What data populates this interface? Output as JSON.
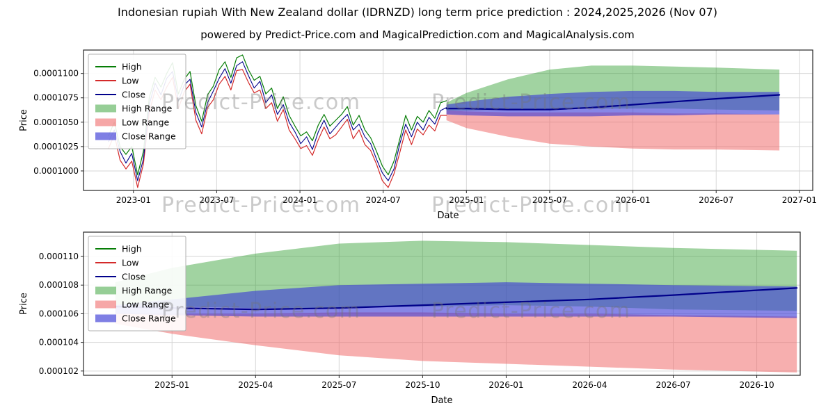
{
  "page": {
    "title": "Indonesian rupiah With New Zealand dollar (IDRNZD) long term price prediction : 2024,2025,2026 (Nov 07)",
    "subtitle": "powered by Predict-Price.com and MagicalPrediction.com and MagicalAnalysis.com",
    "watermark_text": "Predict-Price.com"
  },
  "legend": {
    "high": "High",
    "low": "Low",
    "close": "Close",
    "high_range": "High Range",
    "low_range": "Low Range",
    "close_range": "Close Range"
  },
  "colors": {
    "high_line": "#067d06",
    "low_line": "#d42a2a",
    "close_line": "#00008b",
    "high_band": "#2e9e2e",
    "low_band": "#ef5f5f",
    "close_band": "#3b3bd6",
    "grid": "#d6d6d6",
    "spine": "#262626"
  },
  "chart_data": [
    {
      "type": "line",
      "name": "history-and-forecast",
      "value_unit": 1e-07,
      "xlabel": "Date",
      "ylabel": "Price",
      "xlim": [
        2022.7,
        2027.08
      ],
      "ylim": [
        980,
        1124
      ],
      "x_ticks": [
        {
          "t": 2023.0,
          "label": "2023-01"
        },
        {
          "t": 2023.5,
          "label": "2023-07"
        },
        {
          "t": 2024.0,
          "label": "2024-01"
        },
        {
          "t": 2024.5,
          "label": "2024-07"
        },
        {
          "t": 2025.0,
          "label": "2025-01"
        },
        {
          "t": 2025.5,
          "label": "2025-07"
        },
        {
          "t": 2026.0,
          "label": "2026-01"
        },
        {
          "t": 2026.5,
          "label": "2026-07"
        },
        {
          "t": 2027.0,
          "label": "2027-01"
        }
      ],
      "y_ticks": [
        {
          "v": 1100,
          "label": "0.0001100"
        },
        {
          "v": 1075,
          "label": "0.0001075"
        },
        {
          "v": 1050,
          "label": "0.0001050"
        },
        {
          "v": 1025,
          "label": "0.0001025"
        },
        {
          "v": 1000,
          "label": "0.0001000"
        }
      ],
      "history": {
        "x": [
          2022.85,
          2022.885,
          2022.92,
          2022.955,
          2022.99,
          2023.025,
          2023.06,
          2023.095,
          2023.13,
          2023.165,
          2023.2,
          2023.235,
          2023.27,
          2023.305,
          2023.34,
          2023.375,
          2023.41,
          2023.445,
          2023.48,
          2023.515,
          2023.55,
          2023.585,
          2023.62,
          2023.655,
          2023.69,
          2023.725,
          2023.76,
          2023.795,
          2023.83,
          2023.865,
          2023.9,
          2023.935,
          2023.97,
          2024.005,
          2024.04,
          2024.075,
          2024.11,
          2024.145,
          2024.18,
          2024.215,
          2024.25,
          2024.285,
          2024.32,
          2024.355,
          2024.39,
          2024.425,
          2024.46,
          2024.495,
          2024.53,
          2024.565,
          2024.6,
          2024.635,
          2024.67,
          2024.705,
          2024.74,
          2024.775,
          2024.81,
          2024.845,
          2024.88
        ],
        "high": [
          1036,
          1050,
          1025,
          1017,
          1025,
          996,
          1020,
          1075,
          1096,
          1086,
          1100,
          1111,
          1079,
          1094,
          1102,
          1067,
          1051,
          1078,
          1087,
          1104,
          1112,
          1096,
          1116,
          1119,
          1104,
          1093,
          1097,
          1079,
          1085,
          1064,
          1076,
          1057,
          1046,
          1036,
          1040,
          1031,
          1047,
          1058,
          1046,
          1052,
          1058,
          1066,
          1047,
          1057,
          1042,
          1034,
          1020,
          1005,
          996,
          1010,
          1033,
          1057,
          1042,
          1056,
          1050,
          1062,
          1054,
          1070,
          1072
        ],
        "low": [
          1023,
          1037,
          1011,
          1002,
          1010,
          983,
          1007,
          1060,
          1083,
          1073,
          1086,
          1096,
          1064,
          1081,
          1089,
          1052,
          1038,
          1065,
          1073,
          1089,
          1097,
          1083,
          1103,
          1104,
          1091,
          1080,
          1083,
          1064,
          1070,
          1051,
          1063,
          1042,
          1033,
          1023,
          1026,
          1016,
          1032,
          1045,
          1033,
          1037,
          1045,
          1053,
          1033,
          1042,
          1027,
          1021,
          1007,
          990,
          983,
          997,
          1019,
          1042,
          1027,
          1043,
          1037,
          1047,
          1041,
          1057,
          1057
        ],
        "close": [
          1030,
          1042,
          1020,
          1008,
          1018,
          990,
          1012,
          1068,
          1090,
          1078,
          1095,
          1102,
          1072,
          1088,
          1094,
          1060,
          1045,
          1070,
          1082,
          1095,
          1105,
          1090,
          1108,
          1112,
          1098,
          1085,
          1092,
          1070,
          1078,
          1058,
          1068,
          1050,
          1040,
          1028,
          1035,
          1022,
          1040,
          1052,
          1038,
          1045,
          1052,
          1058,
          1042,
          1048,
          1035,
          1028,
          1012,
          998,
          990,
          1002,
          1028,
          1048,
          1035,
          1050,
          1042,
          1055,
          1048,
          1062,
          1065
        ]
      },
      "forecast": {
        "x": [
          2024.88,
          2025.0,
          2025.25,
          2025.5,
          2025.75,
          2026.0,
          2026.25,
          2026.5,
          2026.88
        ],
        "high_range": {
          "upper": [
            1070,
            1080,
            1094,
            1104,
            1108,
            1108,
            1107,
            1106,
            1104
          ],
          "lower": [
            1062,
            1062,
            1063,
            1063,
            1064,
            1064,
            1064,
            1063,
            1062
          ]
        },
        "low_range": {
          "upper": [
            1062,
            1061,
            1060,
            1060,
            1060,
            1060,
            1059,
            1059,
            1058
          ],
          "lower": [
            1052,
            1044,
            1035,
            1028,
            1025,
            1023,
            1022,
            1022,
            1021
          ]
        },
        "close_range": {
          "upper": [
            1068,
            1071,
            1076,
            1079,
            1081,
            1082,
            1082,
            1081,
            1081
          ],
          "lower": [
            1058,
            1057,
            1056,
            1056,
            1056,
            1057,
            1057,
            1058,
            1058
          ]
        },
        "close": [
          1064,
          1064,
          1063,
          1063,
          1065,
          1068,
          1071,
          1074,
          1078
        ]
      }
    },
    {
      "type": "line",
      "name": "forecast-detail",
      "value_unit": 1e-07,
      "xlabel": "Date",
      "ylabel": "Price",
      "xlim": [
        2024.735,
        2026.88
      ],
      "ylim": [
        1017,
        1117
      ],
      "x_ticks": [
        {
          "t": 2025.0,
          "label": "2025-01"
        },
        {
          "t": 2025.25,
          "label": "2025-04"
        },
        {
          "t": 2025.5,
          "label": "2025-07"
        },
        {
          "t": 2025.75,
          "label": "2025-10"
        },
        {
          "t": 2026.0,
          "label": "2026-01"
        },
        {
          "t": 2026.25,
          "label": "2026-04"
        },
        {
          "t": 2026.5,
          "label": "2026-07"
        },
        {
          "t": 2026.75,
          "label": "2026-10"
        }
      ],
      "y_ticks": [
        {
          "v": 1100,
          "label": "0.000110"
        },
        {
          "v": 1080,
          "label": "0.000108"
        },
        {
          "v": 1060,
          "label": "0.000106"
        },
        {
          "v": 1040,
          "label": "0.000104"
        },
        {
          "v": 1020,
          "label": "0.000102"
        }
      ],
      "forecast": {
        "x": [
          2024.83,
          2025.0,
          2025.25,
          2025.5,
          2025.75,
          2026.0,
          2026.25,
          2026.5,
          2026.87
        ],
        "high_range": {
          "upper": [
            1082,
            1092,
            1102,
            1109,
            1111,
            1110,
            1108,
            1106,
            1104
          ],
          "lower": [
            1066,
            1065,
            1064,
            1064,
            1065,
            1066,
            1065,
            1063,
            1062
          ]
        },
        "low_range": {
          "upper": [
            1060,
            1060,
            1060,
            1061,
            1061,
            1060,
            1060,
            1059,
            1058
          ],
          "lower": [
            1053,
            1046,
            1038,
            1031,
            1027,
            1025,
            1023,
            1021,
            1019
          ]
        },
        "close_range": {
          "upper": [
            1066,
            1070,
            1076,
            1080,
            1081,
            1082,
            1081,
            1080,
            1079
          ],
          "lower": [
            1060,
            1059,
            1058,
            1058,
            1058,
            1058,
            1058,
            1058,
            1057
          ]
        },
        "close": [
          1065,
          1064,
          1063,
          1064,
          1066,
          1068,
          1070,
          1073,
          1078
        ]
      }
    }
  ]
}
